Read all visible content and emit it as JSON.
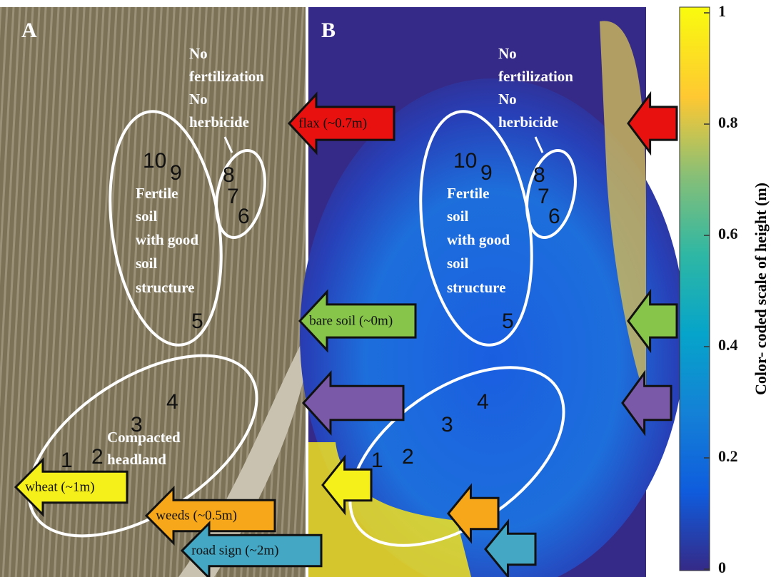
{
  "panel_a": {
    "label": "A"
  },
  "panel_b": {
    "label": "B"
  },
  "no_treatment": [
    "No",
    "fertilization",
    "No",
    "herbicide"
  ],
  "fertile_soil": [
    "Fertile",
    "soil",
    "with good",
    "soil",
    "structure"
  ],
  "compacted_headland": [
    "Compacted",
    "headland"
  ],
  "plot_numbers": [
    "1",
    "2",
    "3",
    "4",
    "5",
    "6",
    "7",
    "8",
    "9",
    "10"
  ],
  "arrows": {
    "flax": "flax (~0.7m)",
    "bare_soil": "bare soil (~0m)",
    "wheat": "wheat (~1m)",
    "weeds": "weeds (~0.5m)",
    "road_sign": "road sign (~2m)"
  },
  "colorbar": {
    "label": "Color- coded scale of height (m)",
    "ylim": [
      0,
      1
    ],
    "yticks": [
      0,
      0.2,
      0.4,
      0.6,
      0.8,
      1
    ]
  }
}
